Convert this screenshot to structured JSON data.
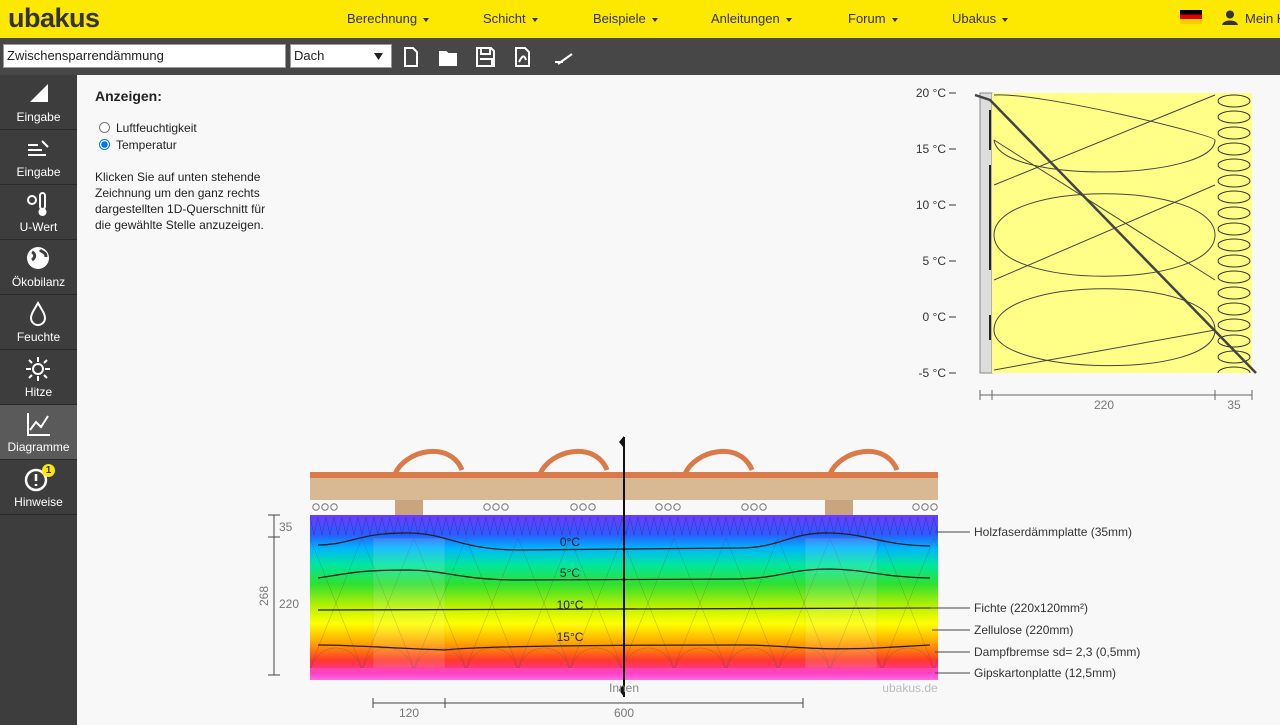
{
  "header": {
    "logo": "ubakus",
    "menu": [
      "Berechnung",
      "Schicht",
      "Beispiele",
      "Anleitungen",
      "Forum",
      "Ubakus"
    ],
    "account": "Mein K"
  },
  "toolbar": {
    "name": "Zwischensparrendämmung",
    "component": "Dach"
  },
  "sidebar": {
    "items": [
      {
        "label": "Eingabe"
      },
      {
        "label": "Eingabe"
      },
      {
        "label": "U-Wert"
      },
      {
        "label": "Ökobilanz"
      },
      {
        "label": "Feuchte"
      },
      {
        "label": "Hitze"
      },
      {
        "label": "Diagramme"
      },
      {
        "label": "Hinweise",
        "badge": "1"
      }
    ],
    "active": "Diagramme"
  },
  "panel": {
    "title": "Anzeigen:",
    "options": [
      "Luftfeuchtigkeit",
      "Temperatur"
    ],
    "selected": "Temperatur",
    "help": "Klicken Sie auf unten stehende Zeichnung um den ganz rechts dargestellten 1D-Querschnitt für die gewählte Stelle anzuzeigen."
  },
  "profile": {
    "ticks": [
      "20 °C",
      "15 °C",
      "10 °C",
      "5 °C",
      "0 °C",
      "-5 °C"
    ],
    "dimensions": [
      "220",
      "35"
    ]
  },
  "section": {
    "isotherms": [
      "0°C",
      "5°C",
      "10°C",
      "15°C"
    ],
    "inside": "Innen",
    "watermark": "ubakus.de",
    "layers": [
      "Holzfaserdämmplatte (35mm)",
      "Fichte (220x120mm²)",
      "Zellulose (220mm)",
      "Dampfbremse sd= 2,3 (0,5mm)",
      "Gipskartonplatte (12,5mm)"
    ],
    "dims_left": [
      "35",
      "220"
    ],
    "total": "268",
    "dims_bottom": [
      "120",
      "600"
    ]
  }
}
